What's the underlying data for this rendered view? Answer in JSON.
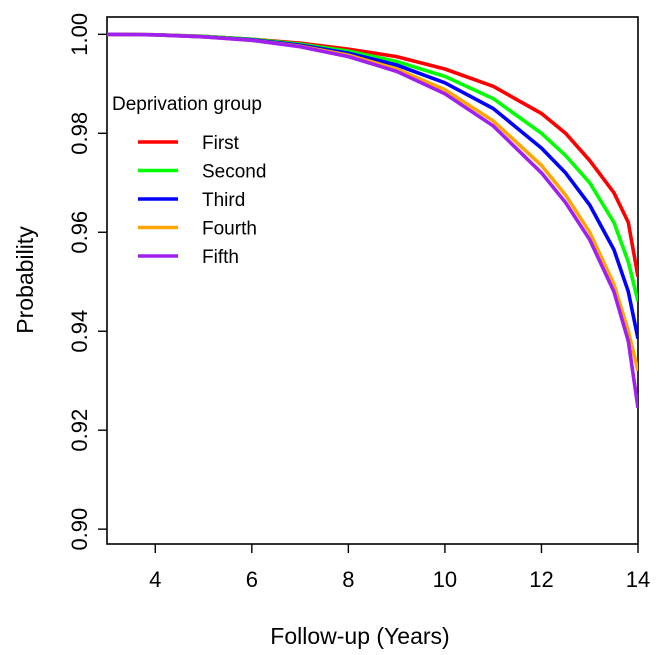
{
  "chart_data": {
    "type": "line",
    "title": "",
    "xlabel": "Follow-up (Years)",
    "ylabel": "Probability",
    "xlim": [
      3,
      14
    ],
    "ylim": [
      0.897,
      1.0035
    ],
    "xticks": [
      4,
      6,
      8,
      10,
      12,
      14
    ],
    "yticks": [
      0.9,
      0.92,
      0.94,
      0.96,
      0.98,
      1.0
    ],
    "xtick_labels": [
      "4",
      "6",
      "8",
      "10",
      "12",
      "14"
    ],
    "ytick_labels": [
      "0.90",
      "0.92",
      "0.94",
      "0.96",
      "0.98",
      "1.00"
    ],
    "grid": false,
    "legend": {
      "title": "Deprivation group",
      "placement": "top-left"
    },
    "x": [
      3,
      4,
      5,
      6,
      7,
      8,
      9,
      10,
      11,
      12,
      12.5,
      13,
      13.5,
      13.8,
      14
    ],
    "series": [
      {
        "name": "First",
        "color": "#ff0000",
        "values": [
          1.0,
          0.9999,
          0.9996,
          0.999,
          0.9982,
          0.997,
          0.9955,
          0.993,
          0.9895,
          0.984,
          0.98,
          0.9745,
          0.968,
          0.962,
          0.951
        ]
      },
      {
        "name": "Second",
        "color": "#00ff00",
        "values": [
          1.0,
          0.9999,
          0.9996,
          0.999,
          0.998,
          0.9966,
          0.9945,
          0.9915,
          0.987,
          0.98,
          0.9755,
          0.97,
          0.962,
          0.954,
          0.946
        ]
      },
      {
        "name": "Third",
        "color": "#0000ff",
        "values": [
          1.0,
          0.9999,
          0.9995,
          0.9989,
          0.9978,
          0.9962,
          0.9938,
          0.9902,
          0.985,
          0.977,
          0.972,
          0.9655,
          0.9565,
          0.948,
          0.9385
        ]
      },
      {
        "name": "Fourth",
        "color": "#ffa500",
        "values": [
          1.0,
          0.9999,
          0.9995,
          0.9988,
          0.9976,
          0.9958,
          0.993,
          0.9888,
          0.9825,
          0.9735,
          0.9675,
          0.96,
          0.9495,
          0.94,
          0.932
        ]
      },
      {
        "name": "Fifth",
        "color": "#a020f0",
        "values": [
          1.0,
          0.9999,
          0.9995,
          0.9988,
          0.9975,
          0.9955,
          0.9925,
          0.988,
          0.9815,
          0.972,
          0.966,
          0.9585,
          0.948,
          0.938,
          0.9245
        ]
      }
    ]
  }
}
